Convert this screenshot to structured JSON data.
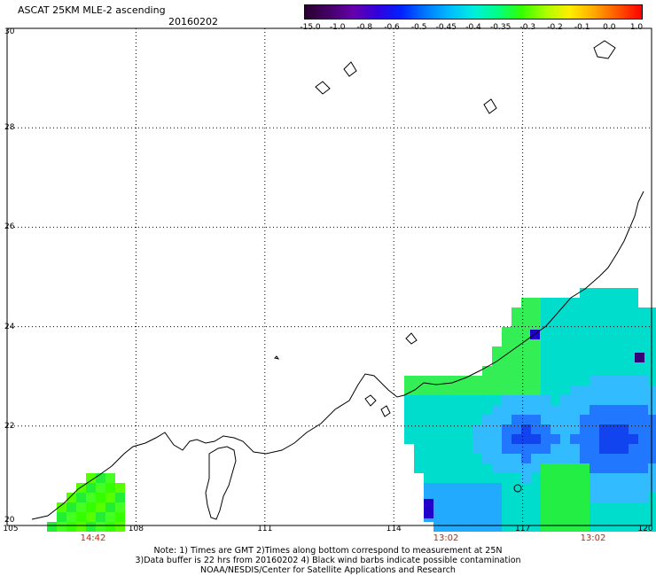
{
  "header": {
    "title": "ASCAT 25KM MLE-2 ascending",
    "date": "20160202"
  },
  "colorbar": {
    "labels": [
      "-15.0",
      "-1.0",
      "-0.8",
      "-0.6",
      "-0.5",
      "-0.45",
      "-0.4",
      "-0.35",
      "-0.3",
      "-0.2",
      "-0.1",
      "0.0",
      "1.0"
    ],
    "colors": [
      "#2a0030",
      "#440066",
      "#6600aa",
      "#3300dd",
      "#0022ff",
      "#0077ff",
      "#00bbff",
      "#00eedd",
      "#00ff88",
      "#33ff00",
      "#aaff00",
      "#ffee00",
      "#ffaa00",
      "#ff5500",
      "#ff0000"
    ]
  },
  "axes": {
    "y_labels": [
      "30",
      "28",
      "26",
      "24",
      "22",
      "20"
    ],
    "x_labels": [
      "105",
      "108",
      "111",
      "114",
      "117",
      "120"
    ]
  },
  "times": [
    "14:42",
    "13:02",
    "13:02"
  ],
  "notes": {
    "line1": "Note: 1) Times are GMT 2)Times along bottom correspond to measurement at 25N",
    "line2": "3)Data buffer is 22 hrs from 20160202 4) Black wind barbs indicate possible contamination",
    "line3": "NOAA/NESDIS/Center for Satellite Applications and Research"
  }
}
